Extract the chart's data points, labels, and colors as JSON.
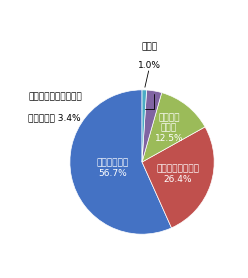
{
  "values": [
    56.7,
    26.4,
    12.5,
    3.4,
    1.0
  ],
  "colors": [
    "#4472c4",
    "#c0504d",
    "#9bbb59",
    "#8064a2",
    "#4bacc6"
  ],
  "figsize": [
    2.48,
    2.78
  ],
  "dpi": 100,
  "start_angle": 90,
  "font_size": 6.5,
  "label0": "設置している\n56.7%",
  "label1": "一部設置している\n26.4%",
  "label2": "設置して\nいない\n12.5%",
  "label3_line1": "設置しているかどうか",
  "label3_line2": "分からない 3.4%",
  "label4_line1": "無回答",
  "label4_line2": "1.0%"
}
